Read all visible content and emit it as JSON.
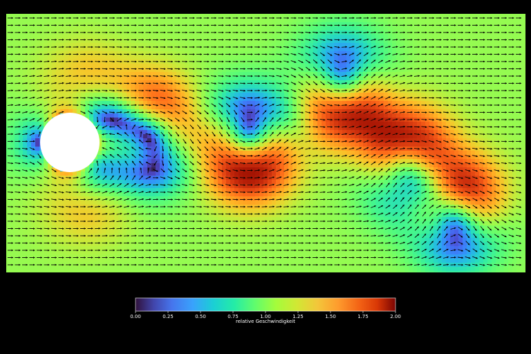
{
  "chart_data": {
    "type": "heatmap",
    "title": "",
    "xlabel": "",
    "ylabel": "",
    "description_value_name": "relative Geschwindigkeit",
    "colormap": "turbo",
    "colorbar": {
      "label": "relative Geschwindigkeit",
      "range": [
        0,
        2
      ],
      "ticks": [
        "0.00",
        "0.25",
        "0.50",
        "0.75",
        "1.00",
        "1.25",
        "1.50",
        "1.75",
        "2.00"
      ],
      "placement": "bottom"
    },
    "field": {
      "obstacle": "cylinder",
      "vector_arrows": true,
      "flow_direction": "left-to-right"
    },
    "colors": {
      "background": "#000000",
      "obstacle": "#ffffff",
      "arrows": "#000000"
    }
  }
}
